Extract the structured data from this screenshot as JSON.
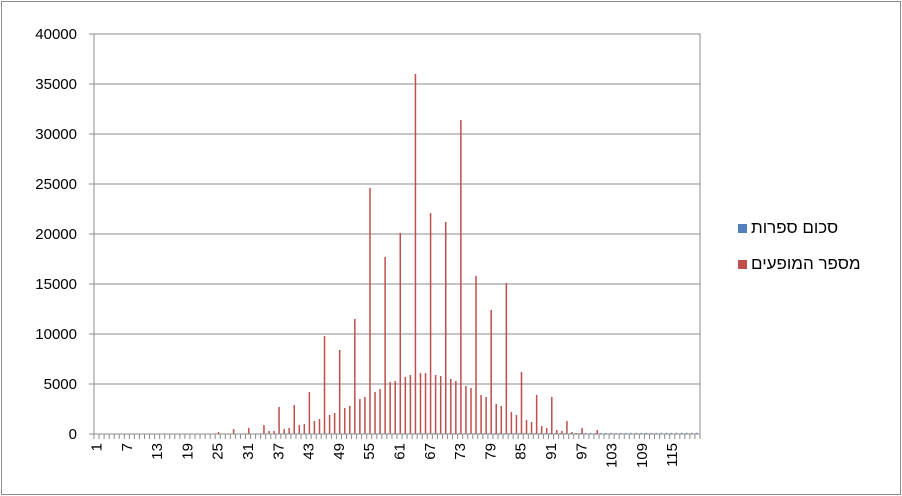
{
  "chart_data": {
    "type": "bar",
    "categories": [
      1,
      2,
      3,
      4,
      5,
      6,
      7,
      8,
      9,
      10,
      11,
      12,
      13,
      14,
      15,
      16,
      17,
      18,
      19,
      20,
      21,
      22,
      23,
      24,
      25,
      26,
      27,
      28,
      29,
      30,
      31,
      32,
      33,
      34,
      35,
      36,
      37,
      38,
      39,
      40,
      41,
      42,
      43,
      44,
      45,
      46,
      47,
      48,
      49,
      50,
      51,
      52,
      53,
      54,
      55,
      56,
      57,
      58,
      59,
      60,
      61,
      62,
      63,
      64,
      65,
      66,
      67,
      68,
      69,
      70,
      71,
      72,
      73,
      74,
      75,
      76,
      77,
      78,
      79,
      80,
      81,
      82,
      83,
      84,
      85,
      86,
      87,
      88,
      89,
      90,
      91,
      92,
      93,
      94,
      95,
      96,
      97,
      98,
      99,
      100,
      101,
      102,
      103,
      104,
      105,
      106,
      107,
      108,
      109,
      110,
      111,
      112,
      113,
      114,
      115,
      116,
      117,
      118,
      119,
      120
    ],
    "x_tick_labels": [
      "1",
      "7",
      "13",
      "19",
      "25",
      "31",
      "37",
      "43",
      "49",
      "55",
      "61",
      "67",
      "73",
      "79",
      "85",
      "91",
      "97",
      "103",
      "109",
      "115"
    ],
    "y_tick_labels": [
      "0",
      "5000",
      "10000",
      "15000",
      "20000",
      "25000",
      "30000",
      "35000",
      "40000"
    ],
    "ylim": [
      0,
      40000
    ],
    "grid": true,
    "legend_position": "right",
    "series": [
      {
        "name": "סכום ספרות",
        "color": "#4F81BD",
        "values": [
          1,
          2,
          3,
          4,
          5,
          6,
          7,
          8,
          9,
          10,
          11,
          12,
          13,
          14,
          15,
          16,
          17,
          18,
          19,
          20,
          21,
          22,
          23,
          24,
          25,
          26,
          27,
          28,
          29,
          30,
          31,
          32,
          33,
          34,
          35,
          36,
          37,
          38,
          39,
          40,
          41,
          42,
          43,
          44,
          45,
          46,
          47,
          48,
          49,
          50,
          51,
          52,
          53,
          54,
          55,
          56,
          57,
          58,
          59,
          60,
          61,
          62,
          63,
          64,
          65,
          66,
          67,
          68,
          69,
          70,
          71,
          72,
          73,
          74,
          75,
          76,
          77,
          78,
          79,
          80,
          81,
          82,
          83,
          84,
          85,
          86,
          87,
          88,
          89,
          90,
          91,
          92,
          93,
          94,
          95,
          96,
          97,
          98,
          99,
          100,
          101,
          102,
          103,
          104,
          105,
          106,
          107,
          108,
          109,
          110,
          111,
          112,
          113,
          114,
          115,
          116,
          117,
          118,
          119,
          120
        ]
      },
      {
        "name": "מספר המופעים",
        "color": "#C0504D",
        "values": [
          0,
          0,
          0,
          0,
          0,
          0,
          0,
          0,
          0,
          0,
          0,
          0,
          0,
          0,
          0,
          0,
          0,
          0,
          0,
          0,
          0,
          0,
          0,
          0,
          200,
          0,
          0,
          500,
          0,
          0,
          600,
          0,
          0,
          900,
          300,
          300,
          2700,
          500,
          600,
          2900,
          900,
          1000,
          4200,
          1300,
          1500,
          9800,
          1900,
          2100,
          8400,
          2600,
          2800,
          11500,
          3500,
          3700,
          24600,
          4200,
          4500,
          17700,
          5200,
          5300,
          20100,
          5700,
          5900,
          36000,
          6100,
          6100,
          22100,
          5900,
          5800,
          21200,
          5500,
          5300,
          31400,
          4800,
          4600,
          15800,
          3900,
          3700,
          12400,
          3000,
          2800,
          15100,
          2200,
          1900,
          6200,
          1400,
          1200,
          3900,
          800,
          600,
          3700,
          400,
          300,
          1300,
          200,
          100,
          600,
          0,
          0,
          400,
          0,
          0,
          0,
          0,
          0,
          0,
          0,
          0,
          0,
          0,
          0,
          0,
          0,
          0,
          0,
          0,
          0,
          0,
          0,
          0
        ]
      }
    ]
  }
}
